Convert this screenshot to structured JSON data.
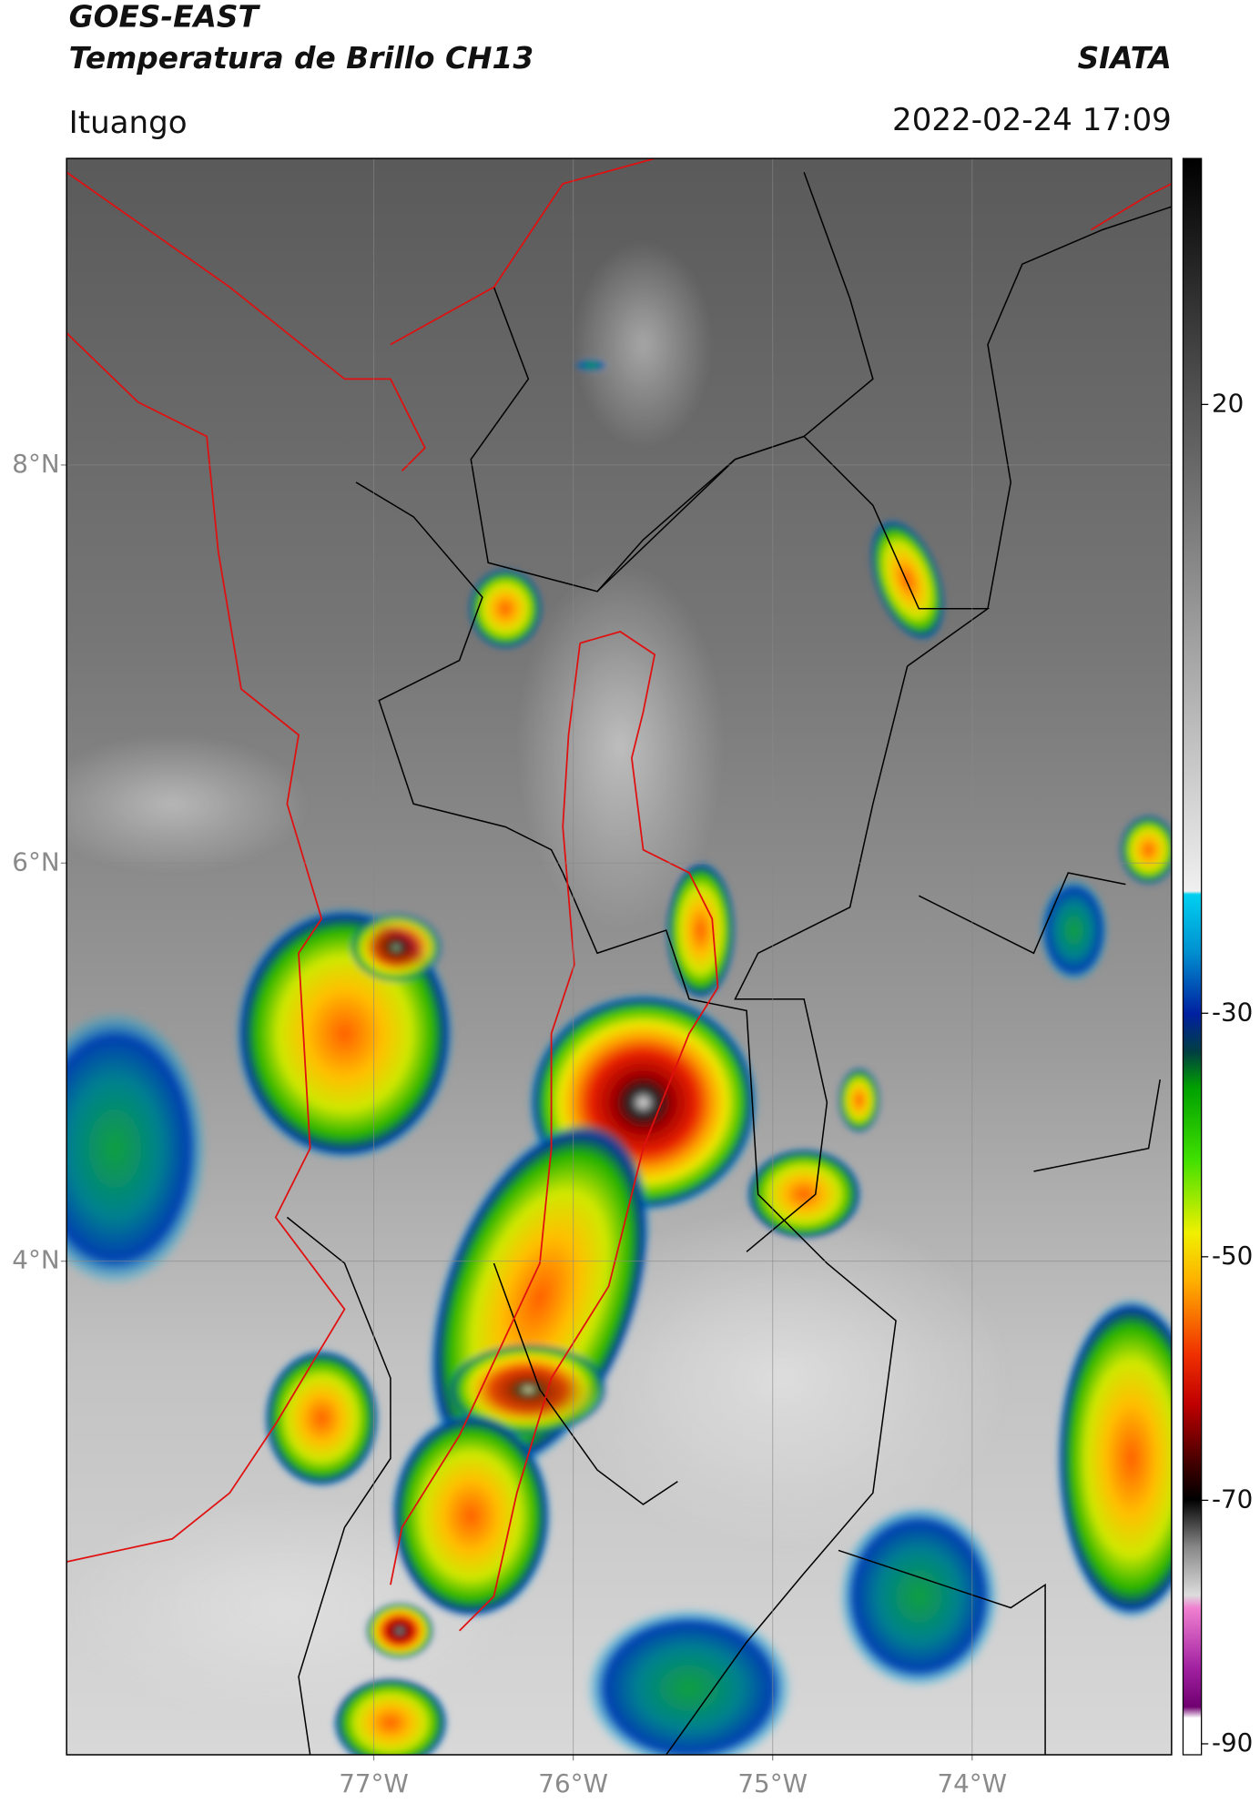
{
  "header": {
    "title": "GOES-EAST",
    "subtitle": "Temperatura de Brillo CH13",
    "source": "SIATA",
    "location": "Ituango",
    "datetime": "2022-02-24 17:09"
  },
  "map": {
    "lat_range": [
      1.52,
      9.54
    ],
    "lon_range": [
      -78.54,
      -73.0
    ],
    "grid": true,
    "lat_ticks": [
      {
        "value": 8,
        "label": "8°N"
      },
      {
        "value": 6,
        "label": "6°N"
      },
      {
        "value": 4,
        "label": "4°N"
      }
    ],
    "lon_ticks": [
      {
        "value": -77,
        "label": "77°W"
      },
      {
        "value": -76,
        "label": "76°W"
      },
      {
        "value": -75,
        "label": "75°W"
      },
      {
        "value": -74,
        "label": "74°W"
      }
    ]
  },
  "colorbar": {
    "clim": [
      -90.9,
      40.2
    ],
    "ticks": [
      20,
      -30,
      -50,
      -70,
      -90
    ]
  }
}
